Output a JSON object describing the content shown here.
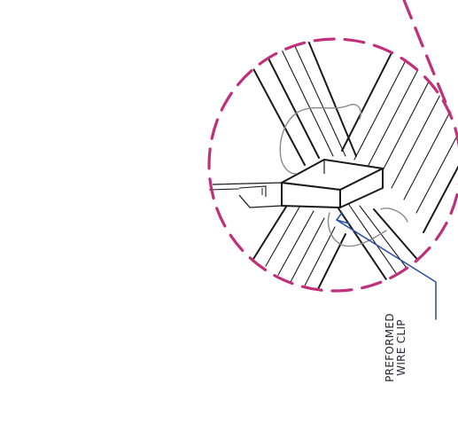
{
  "callout": {
    "line1": "PREFORMED",
    "line2": "WIRE CLIP"
  },
  "colors": {
    "detail_circle": "#c0307a",
    "leader": "#2f52a8",
    "linework": "#1a1a1a",
    "clip_outline": "#8a8a8a"
  }
}
